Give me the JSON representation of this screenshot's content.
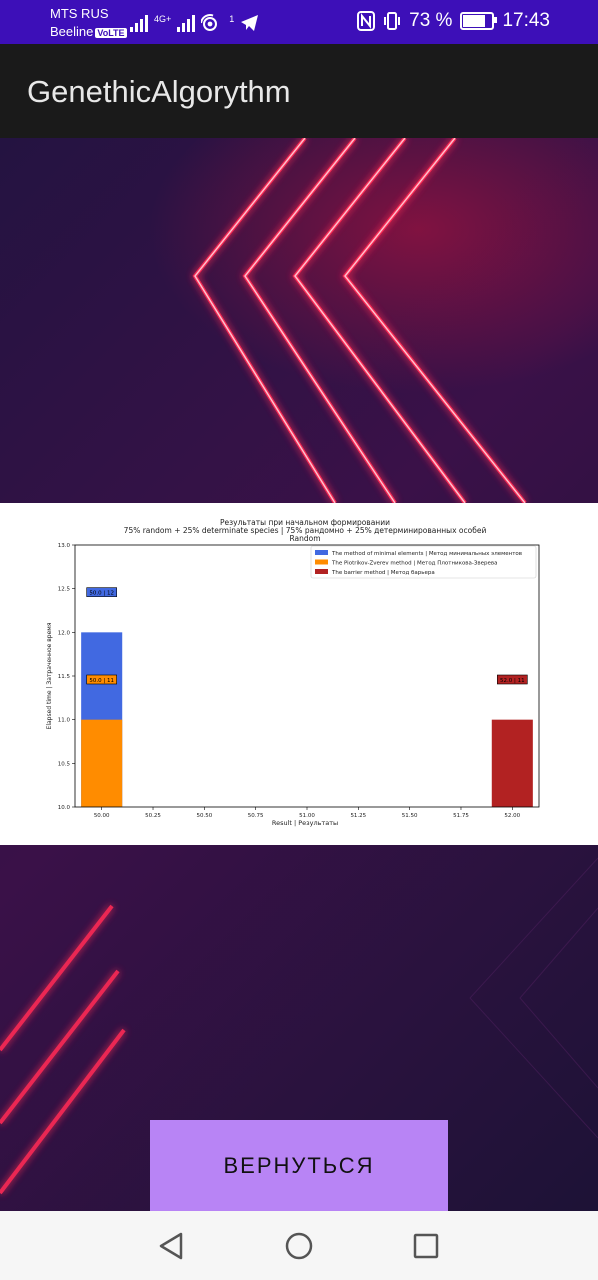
{
  "status_bar": {
    "carrier_primary": "MTS RUS",
    "carrier_secondary": "Beeline",
    "volte_badge": "VoLTE",
    "network_type": "4G+",
    "notification_count": "1",
    "battery_percent": "73 %",
    "time": "17:43",
    "icons": [
      "signal-icon",
      "wifi-icon",
      "telegram-icon",
      "nfc-icon",
      "vibrate-icon",
      "battery-icon"
    ]
  },
  "app_bar": {
    "title": "GenethicAlgorythm"
  },
  "chart_data": {
    "type": "bar",
    "title": [
      "Результаты при начальном формировании",
      "75% random + 25% determinate species | 75% рандомно + 25% детерминированных особей",
      "Random"
    ],
    "xlabel": "Result | Результаты",
    "ylabel": "Elapsed time | Затраченное время",
    "xlim": [
      49.87,
      52.13
    ],
    "ylim": [
      10.0,
      13.0
    ],
    "xticks": [
      "50.00",
      "50.25",
      "50.50",
      "50.75",
      "51.00",
      "51.25",
      "51.50",
      "51.75",
      "52.00"
    ],
    "yticks": [
      "10.0",
      "10.5",
      "11.0",
      "11.5",
      "12.0",
      "12.5",
      "13.0"
    ],
    "legend_position": "top-right",
    "series": [
      {
        "name": "The method of minimal elements | Метод минимальных элементов",
        "color": "#4169e1",
        "x": 50.0,
        "y": 12.0,
        "label": "50.0 | 12"
      },
      {
        "name": "The Piotrikov-Zverev method | Метод Плотникова-Зверева",
        "color": "#ff8c00",
        "x": 50.0,
        "y": 11.0,
        "label": "50.0 | 11"
      },
      {
        "name": "The barrier method | Метод барьера",
        "color": "#b22222",
        "x": 52.0,
        "y": 11.0,
        "label": "52.0 | 11"
      }
    ],
    "bar_width": 0.2
  },
  "actions": {
    "return_label": "ВЕРНУТЬСЯ"
  },
  "nav_bar": {
    "back": "back-icon",
    "home": "home-icon",
    "recents": "recents-icon"
  }
}
